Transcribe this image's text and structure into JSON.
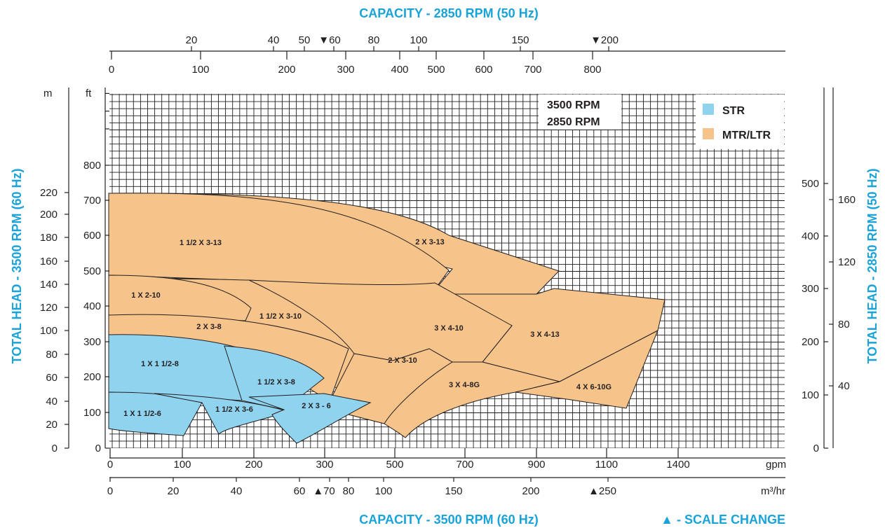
{
  "chart_data": {
    "type": "area",
    "titles": {
      "top": "CAPACITY - 2850 RPM (50 Hz)",
      "bottom": "CAPACITY - 3500 RPM (60 Hz)",
      "left": "TOTAL HEAD - 3500 RPM (60 Hz)",
      "right": "TOTAL HEAD - 2850 RPM (50 Hz)",
      "scale_change": "▲ - SCALE CHANGE"
    },
    "units": {
      "m": "m",
      "ft": "ft",
      "gpm": "gpm",
      "m3hr": "m³/hr"
    },
    "speed_box": [
      "3500 RPM",
      "2850 RPM"
    ],
    "legend": [
      {
        "name": "STR",
        "color": "#8fd3ef"
      },
      {
        "name": "MTR/LTR",
        "color": "#f6c48b"
      }
    ],
    "colors": {
      "title": "#1aa3d9",
      "grid": "#231f20",
      "outline": "#231f20"
    },
    "axes": {
      "bottom_gpm": {
        "ticks": [
          "0",
          "100",
          "200",
          "300",
          "500",
          "700",
          "900",
          "1100",
          "1400"
        ],
        "unit": "gpm",
        "scale_changes_at": [
          300
        ]
      },
      "bottom_m3hr": {
        "ticks": [
          "0",
          "20",
          "40",
          "60",
          "70",
          "80",
          "100",
          "150",
          "200",
          "250"
        ],
        "unit": "m³/hr",
        "scale_change_markers": [
          "70",
          "250"
        ]
      },
      "top_gpm": {
        "ticks": [
          "0",
          "100",
          "200",
          "300",
          "400",
          "500",
          "600",
          "700",
          "800"
        ]
      },
      "top_m3hr": {
        "ticks": [
          "20",
          "40",
          "50",
          "60",
          "80",
          "100",
          "150",
          "200"
        ],
        "scale_change_markers": [
          "60",
          "200"
        ]
      },
      "left_ft": {
        "ticks": [
          "0",
          "100",
          "200",
          "300",
          "400",
          "500",
          "600",
          "700",
          "800"
        ],
        "unit": "ft"
      },
      "left_m": {
        "ticks": [
          "0",
          "20",
          "40",
          "60",
          "80",
          "100",
          "120",
          "140",
          "160",
          "180",
          "200",
          "220"
        ],
        "unit": "m"
      },
      "right_ft": {
        "ticks": [
          "0",
          "100",
          "200",
          "300",
          "400",
          "500"
        ]
      },
      "right_m": {
        "ticks": [
          "40",
          "80",
          "120",
          "160"
        ]
      }
    },
    "regions": [
      {
        "name": "1 1/2 X 3-13",
        "group": "MTR/LTR"
      },
      {
        "name": "2 X 3-13",
        "group": "MTR/LTR"
      },
      {
        "name": "1 X 2-10",
        "group": "MTR/LTR"
      },
      {
        "name": "1 1/2 X 3-10",
        "group": "MTR/LTR"
      },
      {
        "name": "3 X 4-10",
        "group": "MTR/LTR"
      },
      {
        "name": "3 X 4-13",
        "group": "MTR/LTR"
      },
      {
        "name": "2 X 3-8",
        "group": "MTR/LTR"
      },
      {
        "name": "2 X 3-10",
        "group": "MTR/LTR"
      },
      {
        "name": "3 X 4-8G",
        "group": "MTR/LTR"
      },
      {
        "name": "4 X 6-10G",
        "group": "MTR/LTR"
      },
      {
        "name": "1 X 1 1/2-8",
        "group": "STR"
      },
      {
        "name": "1 1/2 X 3-8",
        "group": "STR"
      },
      {
        "name": "1 X 1 1/2-6",
        "group": "STR"
      },
      {
        "name": "1 1/2 X 3-6",
        "group": "STR"
      },
      {
        "name": "2 X 3 - 6",
        "group": "STR"
      }
    ]
  }
}
